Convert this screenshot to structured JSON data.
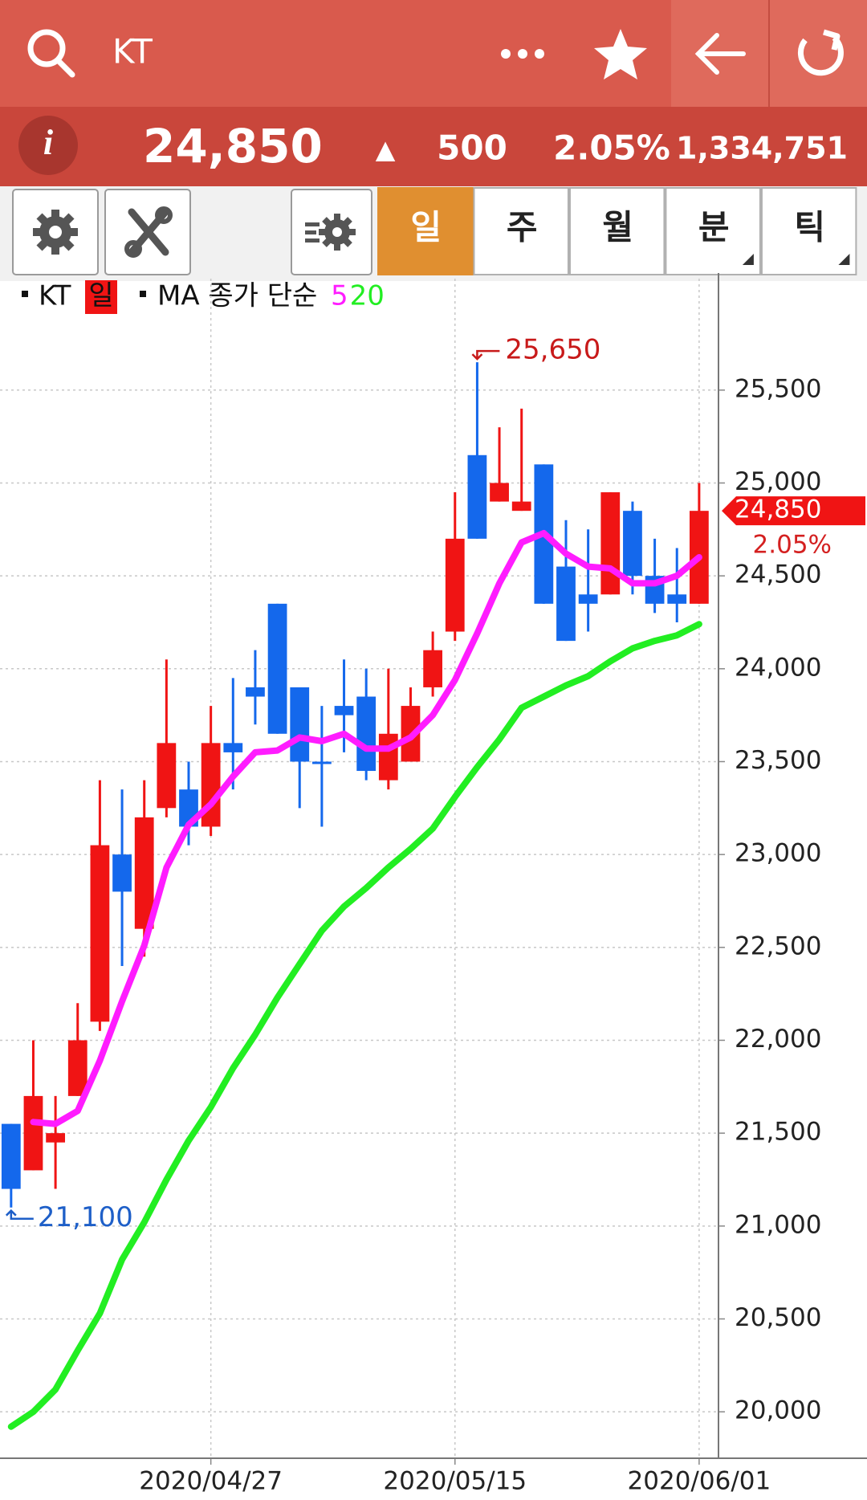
{
  "header": {
    "title": "KT"
  },
  "quote": {
    "icon": "i",
    "price": "24,850",
    "direction": "▲",
    "change": "500",
    "change_pct": "2.05%",
    "volume": "1,334,751"
  },
  "tabs": [
    "일",
    "주",
    "월",
    "분",
    "틱"
  ],
  "chart_data": {
    "type": "candlestick",
    "name": "KT",
    "period": "일",
    "legend_title": "MA 종가 단순",
    "categories": [
      null,
      null,
      null,
      null,
      null,
      null,
      null,
      null,
      null,
      "2020/04/27",
      null,
      null,
      null,
      null,
      null,
      null,
      null,
      null,
      null,
      null,
      "2020/05/15",
      null,
      null,
      null,
      null,
      null,
      null,
      null,
      null,
      null,
      null,
      "2020/06/01"
    ],
    "open": [
      21550,
      21300,
      21450,
      21700,
      22100,
      23000,
      22600,
      23250,
      23350,
      23150,
      23600,
      23900,
      24350,
      23900,
      23500,
      23800,
      23850,
      23400,
      23500,
      23900,
      24200,
      25150,
      24900,
      24850,
      25100,
      24550,
      24400,
      24400,
      24850,
      24500,
      24400,
      24350
    ],
    "high": [
      21550,
      22000,
      21700,
      22200,
      23400,
      23350,
      23400,
      24050,
      23500,
      23800,
      23950,
      24100,
      24350,
      23900,
      23800,
      24050,
      24000,
      24000,
      23900,
      24200,
      24950,
      25650,
      25300,
      25400,
      25100,
      24800,
      24750,
      24950,
      24900,
      24700,
      24650,
      25000
    ],
    "low": [
      21100,
      21300,
      21200,
      21700,
      22050,
      22400,
      22450,
      23200,
      23050,
      23100,
      23350,
      23700,
      23650,
      23250,
      23150,
      23550,
      23400,
      23350,
      23500,
      23850,
      24150,
      24700,
      24900,
      24850,
      24350,
      24150,
      24200,
      24400,
      24400,
      24300,
      24250,
      24350
    ],
    "close": [
      21200,
      21700,
      21500,
      22000,
      23050,
      22800,
      23200,
      23600,
      23150,
      23600,
      23550,
      23850,
      23650,
      23500,
      23500,
      23750,
      23450,
      23650,
      23800,
      24100,
      24700,
      24700,
      25000,
      24900,
      24350,
      24150,
      24350,
      24950,
      24500,
      24350,
      24350,
      24850
    ],
    "up_color": "#f01414",
    "down_color": "#1468ec",
    "series": [
      {
        "name": "5",
        "color": "#ff1cff",
        "values": [
          null,
          21560,
          21550,
          21620,
          21890,
          22210,
          22510,
          22930,
          23160,
          23270,
          23420,
          23550,
          23560,
          23630,
          23610,
          23650,
          23570,
          23570,
          23630,
          23750,
          23940,
          24190,
          24460,
          24680,
          24730,
          24620,
          24550,
          24540,
          24460,
          24460,
          24500,
          24600
        ]
      },
      {
        "name": "20",
        "color": "#22ee22",
        "values": [
          19920,
          20000,
          20120,
          20330,
          20530,
          20820,
          21020,
          21250,
          21460,
          21640,
          21850,
          22030,
          22230,
          22410,
          22590,
          22720,
          22820,
          22930,
          23030,
          23140,
          23310,
          23470,
          23620,
          23790,
          23850,
          23910,
          23960,
          24040,
          24110,
          24150,
          24180,
          24240
        ]
      }
    ],
    "ylim": [
      19750,
      26100
    ],
    "yticks": [
      {
        "value": 20000,
        "label": "20,000"
      },
      {
        "value": 20500,
        "label": "20,500"
      },
      {
        "value": 21000,
        "label": "21,000"
      },
      {
        "value": 21500,
        "label": "21,500"
      },
      {
        "value": 22000,
        "label": "22,000"
      },
      {
        "value": 22500,
        "label": "22,500"
      },
      {
        "value": 23000,
        "label": "23,000"
      },
      {
        "value": 23500,
        "label": "23,500"
      },
      {
        "value": 24000,
        "label": "24,000"
      },
      {
        "value": 24500,
        "label": "24,500"
      },
      {
        "value": 25000,
        "label": "25,000"
      },
      {
        "value": 25500,
        "label": "25,500"
      }
    ],
    "grid": true,
    "high_label": "25,650",
    "low_label": "21,100",
    "last_label": "24,850",
    "last_change_label": "2.05%"
  }
}
